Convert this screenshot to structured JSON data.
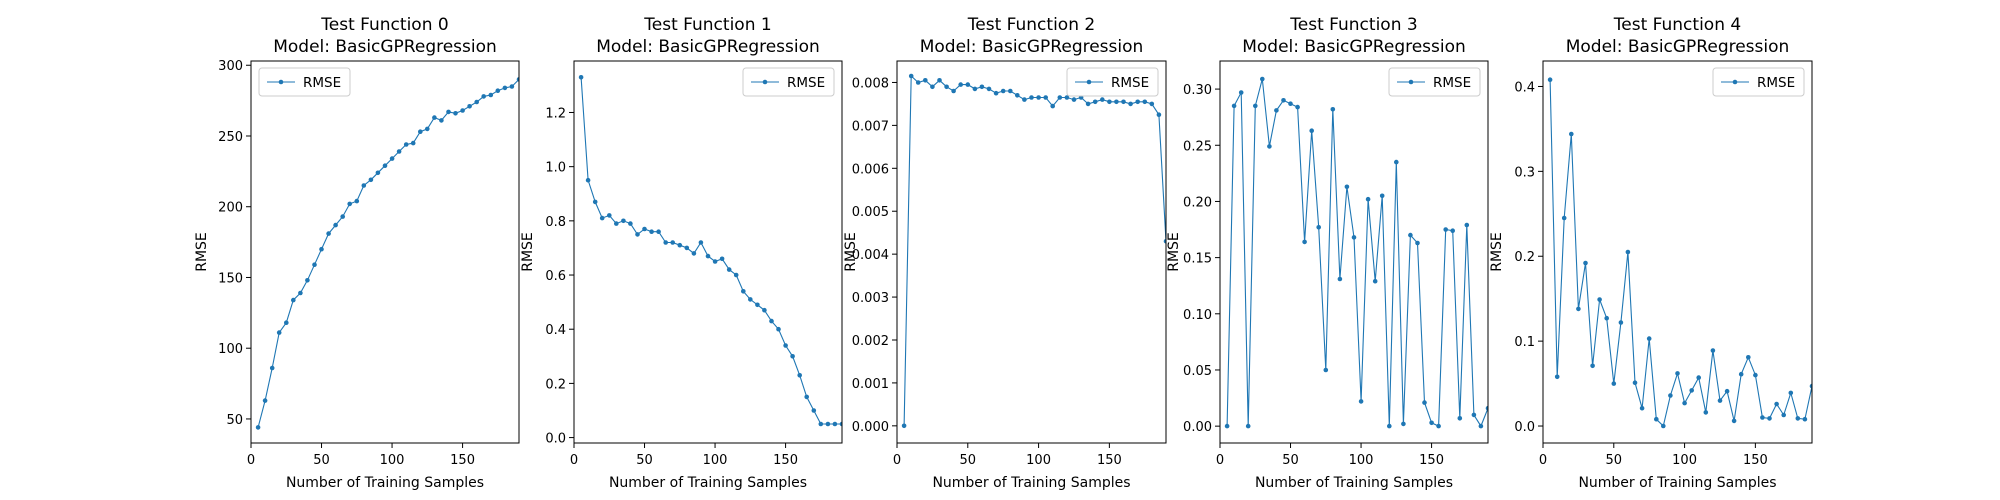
{
  "colors": {
    "series": "#1f77b4",
    "axes": "#000000",
    "legend_border": "#cccccc",
    "background": "#ffffff"
  },
  "chart_data": [
    {
      "type": "line",
      "title": "Test Function 0",
      "subtitle": "Model: BasicGPRegression",
      "xlabel": "Number of Training Samples",
      "ylabel": "RMSE",
      "xlim": [
        0,
        190
      ],
      "ylim": [
        33,
        303
      ],
      "xticks": [
        0,
        50,
        100,
        150
      ],
      "yticks": [
        50,
        100,
        150,
        200,
        250,
        300
      ],
      "ytick_labels": [
        "50",
        "100",
        "150",
        "200",
        "250",
        "300"
      ],
      "grid": false,
      "legend": "upper-left",
      "series": [
        {
          "name": "RMSE",
          "x": [
            5,
            10,
            15,
            20,
            25,
            30,
            35,
            40,
            45,
            50,
            55,
            60,
            65,
            70,
            75,
            80,
            85,
            90,
            95,
            100,
            105,
            110,
            115,
            120,
            125,
            130,
            135,
            140,
            145,
            150,
            155,
            160,
            165,
            170,
            175,
            180,
            185,
            190
          ],
          "y": [
            44,
            63,
            86,
            111,
            118,
            134,
            139,
            148,
            159,
            170,
            181,
            187,
            193,
            202,
            204,
            215,
            219,
            224,
            229,
            234,
            239,
            244,
            245,
            253,
            255,
            263,
            261,
            267,
            266,
            268,
            271,
            274,
            278,
            279,
            282,
            284,
            285,
            290
          ]
        }
      ]
    },
    {
      "type": "line",
      "title": "Test Function 1",
      "subtitle": "Model: BasicGPRegression",
      "xlabel": "Number of Training Samples",
      "ylabel": "RMSE",
      "xlim": [
        0,
        190
      ],
      "ylim": [
        -0.02,
        1.39
      ],
      "xticks": [
        0,
        50,
        100,
        150
      ],
      "yticks": [
        0.0,
        0.2,
        0.4,
        0.6,
        0.8,
        1.0,
        1.2
      ],
      "ytick_labels": [
        "0.0",
        "0.2",
        "0.4",
        "0.6",
        "0.8",
        "1.0",
        "1.2"
      ],
      "grid": false,
      "legend": "upper-right",
      "series": [
        {
          "name": "RMSE",
          "x": [
            5,
            10,
            15,
            20,
            25,
            30,
            35,
            40,
            45,
            50,
            55,
            60,
            65,
            70,
            75,
            80,
            85,
            90,
            95,
            100,
            105,
            110,
            115,
            120,
            125,
            130,
            135,
            140,
            145,
            150,
            155,
            160,
            165,
            170,
            175,
            180,
            185,
            190
          ],
          "y": [
            1.33,
            0.95,
            0.87,
            0.81,
            0.82,
            0.79,
            0.8,
            0.79,
            0.75,
            0.77,
            0.76,
            0.76,
            0.72,
            0.72,
            0.71,
            0.7,
            0.68,
            0.72,
            0.67,
            0.65,
            0.66,
            0.62,
            0.6,
            0.54,
            0.51,
            0.49,
            0.47,
            0.43,
            0.4,
            0.34,
            0.3,
            0.23,
            0.15,
            0.1,
            0.05,
            0.05,
            0.05,
            0.05
          ]
        }
      ]
    },
    {
      "type": "line",
      "title": "Test Function 2",
      "subtitle": "Model: BasicGPRegression",
      "xlabel": "Number of Training Samples",
      "ylabel": "RMSE",
      "xlim": [
        0,
        190
      ],
      "ylim": [
        -0.0004,
        0.0085
      ],
      "xticks": [
        0,
        50,
        100,
        150
      ],
      "yticks": [
        0.0,
        0.001,
        0.002,
        0.003,
        0.004,
        0.005,
        0.006,
        0.007,
        0.008
      ],
      "ytick_labels": [
        "0.000",
        "0.001",
        "0.002",
        "0.003",
        "0.004",
        "0.005",
        "0.006",
        "0.007",
        "0.008"
      ],
      "grid": false,
      "legend": "upper-right",
      "series": [
        {
          "name": "RMSE",
          "x": [
            5,
            10,
            15,
            20,
            25,
            30,
            35,
            40,
            45,
            50,
            55,
            60,
            65,
            70,
            75,
            80,
            85,
            90,
            95,
            100,
            105,
            110,
            115,
            120,
            125,
            130,
            135,
            140,
            145,
            150,
            155,
            160,
            165,
            170,
            175,
            180,
            185,
            190
          ],
          "y": [
            0.0,
            0.00815,
            0.008,
            0.00805,
            0.0079,
            0.00805,
            0.0079,
            0.0078,
            0.00795,
            0.00795,
            0.00785,
            0.0079,
            0.00785,
            0.00775,
            0.0078,
            0.0078,
            0.0077,
            0.0076,
            0.00765,
            0.00765,
            0.00765,
            0.00745,
            0.00765,
            0.00765,
            0.0076,
            0.00765,
            0.0075,
            0.00755,
            0.0076,
            0.00755,
            0.00755,
            0.00755,
            0.0075,
            0.00755,
            0.00755,
            0.0075,
            0.00725,
            0.0043
          ]
        }
      ]
    },
    {
      "type": "line",
      "title": "Test Function 3",
      "subtitle": "Model: BasicGPRegression",
      "xlabel": "Number of Training Samples",
      "ylabel": "RMSE",
      "xlim": [
        0,
        190
      ],
      "ylim": [
        -0.015,
        0.325
      ],
      "xticks": [
        0,
        50,
        100,
        150
      ],
      "yticks": [
        0.0,
        0.05,
        0.1,
        0.15,
        0.2,
        0.25,
        0.3
      ],
      "ytick_labels": [
        "0.00",
        "0.05",
        "0.10",
        "0.15",
        "0.20",
        "0.25",
        "0.30"
      ],
      "grid": false,
      "legend": "upper-right",
      "series": [
        {
          "name": "RMSE",
          "x": [
            5,
            10,
            15,
            20,
            25,
            30,
            35,
            40,
            45,
            50,
            55,
            60,
            65,
            70,
            75,
            80,
            85,
            90,
            95,
            100,
            105,
            110,
            115,
            120,
            125,
            130,
            135,
            140,
            145,
            150,
            155,
            160,
            165,
            170,
            175,
            180,
            185,
            190
          ],
          "y": [
            0.0,
            0.285,
            0.297,
            0.0,
            0.285,
            0.309,
            0.249,
            0.281,
            0.29,
            0.287,
            0.284,
            0.164,
            0.263,
            0.177,
            0.05,
            0.282,
            0.131,
            0.213,
            0.168,
            0.022,
            0.202,
            0.129,
            0.205,
            0.0,
            0.235,
            0.002,
            0.17,
            0.163,
            0.021,
            0.003,
            0.0,
            0.175,
            0.174,
            0.007,
            0.179,
            0.01,
            0.0,
            0.016
          ]
        }
      ]
    },
    {
      "type": "line",
      "title": "Test Function 4",
      "subtitle": "Model: BasicGPRegression",
      "xlabel": "Number of Training Samples",
      "ylabel": "RMSE",
      "xlim": [
        0,
        190
      ],
      "ylim": [
        -0.02,
        0.43
      ],
      "xticks": [
        0,
        50,
        100,
        150
      ],
      "yticks": [
        0.0,
        0.1,
        0.2,
        0.3,
        0.4
      ],
      "ytick_labels": [
        "0.0",
        "0.1",
        "0.2",
        "0.3",
        "0.4"
      ],
      "grid": false,
      "legend": "upper-right",
      "series": [
        {
          "name": "RMSE",
          "x": [
            5,
            10,
            15,
            20,
            25,
            30,
            35,
            40,
            45,
            50,
            55,
            60,
            65,
            70,
            75,
            80,
            85,
            90,
            95,
            100,
            105,
            110,
            115,
            120,
            125,
            130,
            135,
            140,
            145,
            150,
            155,
            160,
            165,
            170,
            175,
            180,
            185,
            190
          ],
          "y": [
            0.408,
            0.058,
            0.245,
            0.344,
            0.138,
            0.192,
            0.071,
            0.149,
            0.127,
            0.05,
            0.122,
            0.205,
            0.051,
            0.021,
            0.103,
            0.008,
            0.0,
            0.036,
            0.062,
            0.027,
            0.042,
            0.057,
            0.016,
            0.089,
            0.03,
            0.041,
            0.006,
            0.061,
            0.081,
            0.06,
            0.01,
            0.009,
            0.026,
            0.013,
            0.039,
            0.009,
            0.008,
            0.047
          ]
        }
      ]
    }
  ]
}
